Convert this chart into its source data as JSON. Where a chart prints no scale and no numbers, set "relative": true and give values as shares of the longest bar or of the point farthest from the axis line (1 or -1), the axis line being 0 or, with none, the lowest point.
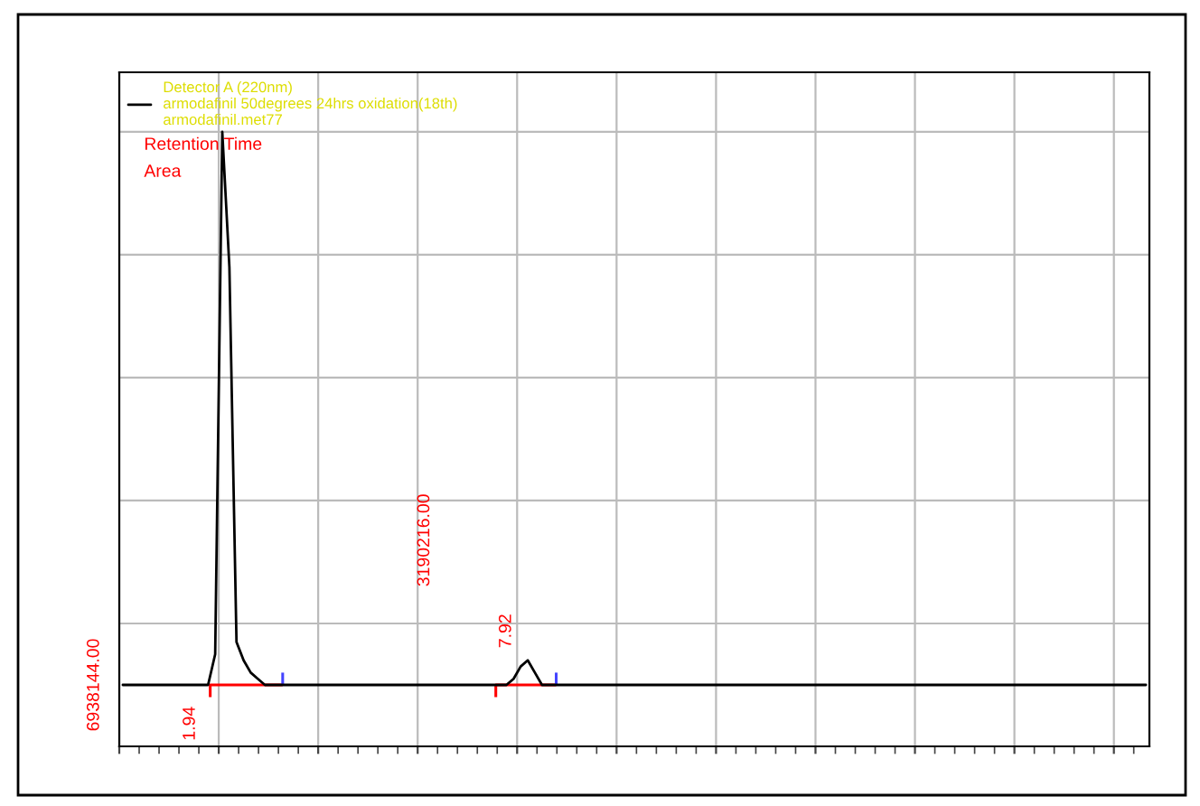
{
  "chart_data": {
    "type": "line",
    "relative": true,
    "grid": true,
    "legend": "top left",
    "tick_labels": false,
    "categories": [
      null,
      null,
      null,
      null,
      null,
      null,
      null,
      null,
      null,
      null,
      null,
      null,
      null,
      null,
      null,
      null,
      null,
      null,
      null,
      null,
      null,
      null,
      null,
      null,
      null,
      null,
      null,
      null,
      null,
      null,
      null,
      null,
      null,
      null,
      null,
      null,
      null,
      null,
      null,
      null,
      null,
      null,
      null,
      null,
      null,
      null,
      null,
      null,
      null,
      null,
      null,
      null,
      null,
      null,
      null,
      null,
      null,
      null,
      null,
      null,
      null,
      null,
      null,
      null,
      null,
      null,
      null,
      null,
      null,
      null,
      null,
      null,
      null,
      null,
      null,
      null,
      null,
      null,
      null,
      null,
      null,
      null,
      null,
      null,
      null,
      null,
      null,
      null,
      null,
      null,
      null,
      null,
      null,
      null,
      null,
      null,
      null,
      null,
      null,
      null,
      null,
      null,
      null,
      null,
      null,
      null,
      null,
      null,
      null,
      null,
      null,
      null,
      null,
      null,
      null,
      null,
      null,
      null,
      null,
      null,
      null,
      null,
      null,
      null,
      null,
      null,
      null,
      null,
      null,
      null,
      null,
      null,
      null,
      null,
      null,
      null,
      null,
      null,
      null,
      null,
      null,
      null,
      null,
      null,
      null
    ],
    "series": [
      {
        "name": "Detector A (220nm)\narmodafinil 50degrees 24hrs oxidation(18th)\narmodafinil.met77",
        "color": "#000000",
        "values": [
          0.1,
          0.1,
          0.1,
          0.1,
          0.1,
          0.1,
          0.1,
          0.1,
          0.1,
          0.1,
          0.1,
          0.1,
          0.1,
          0.15,
          1,
          0.78,
          0.17,
          0.14,
          0.12,
          0.11,
          0.1,
          0.1,
          0.1,
          0.1,
          0.1,
          0.1,
          0.1,
          0.1,
          0.1,
          0.1,
          0.1,
          0.1,
          0.1,
          0.1,
          0.1,
          0.1,
          0.1,
          0.1,
          0.1,
          0.1,
          0.1,
          0.1,
          0.1,
          0.1,
          0.1,
          0.1,
          0.1,
          0.1,
          0.1,
          0.1,
          0.1,
          0.1,
          0.1,
          0.1,
          0.1,
          0.11,
          0.13,
          0.14,
          0.12,
          0.1,
          0.1,
          0.1,
          0.1,
          0.1,
          0.1,
          0.1,
          0.1,
          0.1,
          0.1,
          0.1,
          0.1,
          0.1,
          0.1,
          0.1,
          0.1,
          0.1,
          0.1,
          0.1,
          0.1,
          0.1,
          0.1,
          0.1,
          0.1,
          0.1,
          0.1,
          0.1,
          0.1,
          0.1,
          0.1,
          0.1,
          0.1,
          0.1,
          0.1,
          0.1,
          0.1,
          0.1,
          0.1,
          0.1,
          0.1,
          0.1,
          0.1,
          0.1,
          0.1,
          0.1,
          0.1,
          0.1,
          0.1,
          0.1,
          0.1,
          0.1,
          0.1,
          0.1,
          0.1,
          0.1,
          0.1,
          0.1,
          0.1,
          0.1,
          0.1,
          0.1,
          0.1,
          0.1,
          0.1,
          0.1,
          0.1,
          0.1,
          0.1,
          0.1,
          0.1,
          0.1,
          0.1,
          0.1,
          0.1,
          0.1,
          0.1,
          0.1,
          0.1,
          0.1,
          0.1,
          0.1,
          0.1,
          0.1,
          0.1,
          0.1,
          0.1
        ]
      }
    ],
    "annotations": [
      "Retention Time",
      "Area",
      "1.94",
      "6938144.00",
      "7.92",
      "3190216.00"
    ]
  }
}
